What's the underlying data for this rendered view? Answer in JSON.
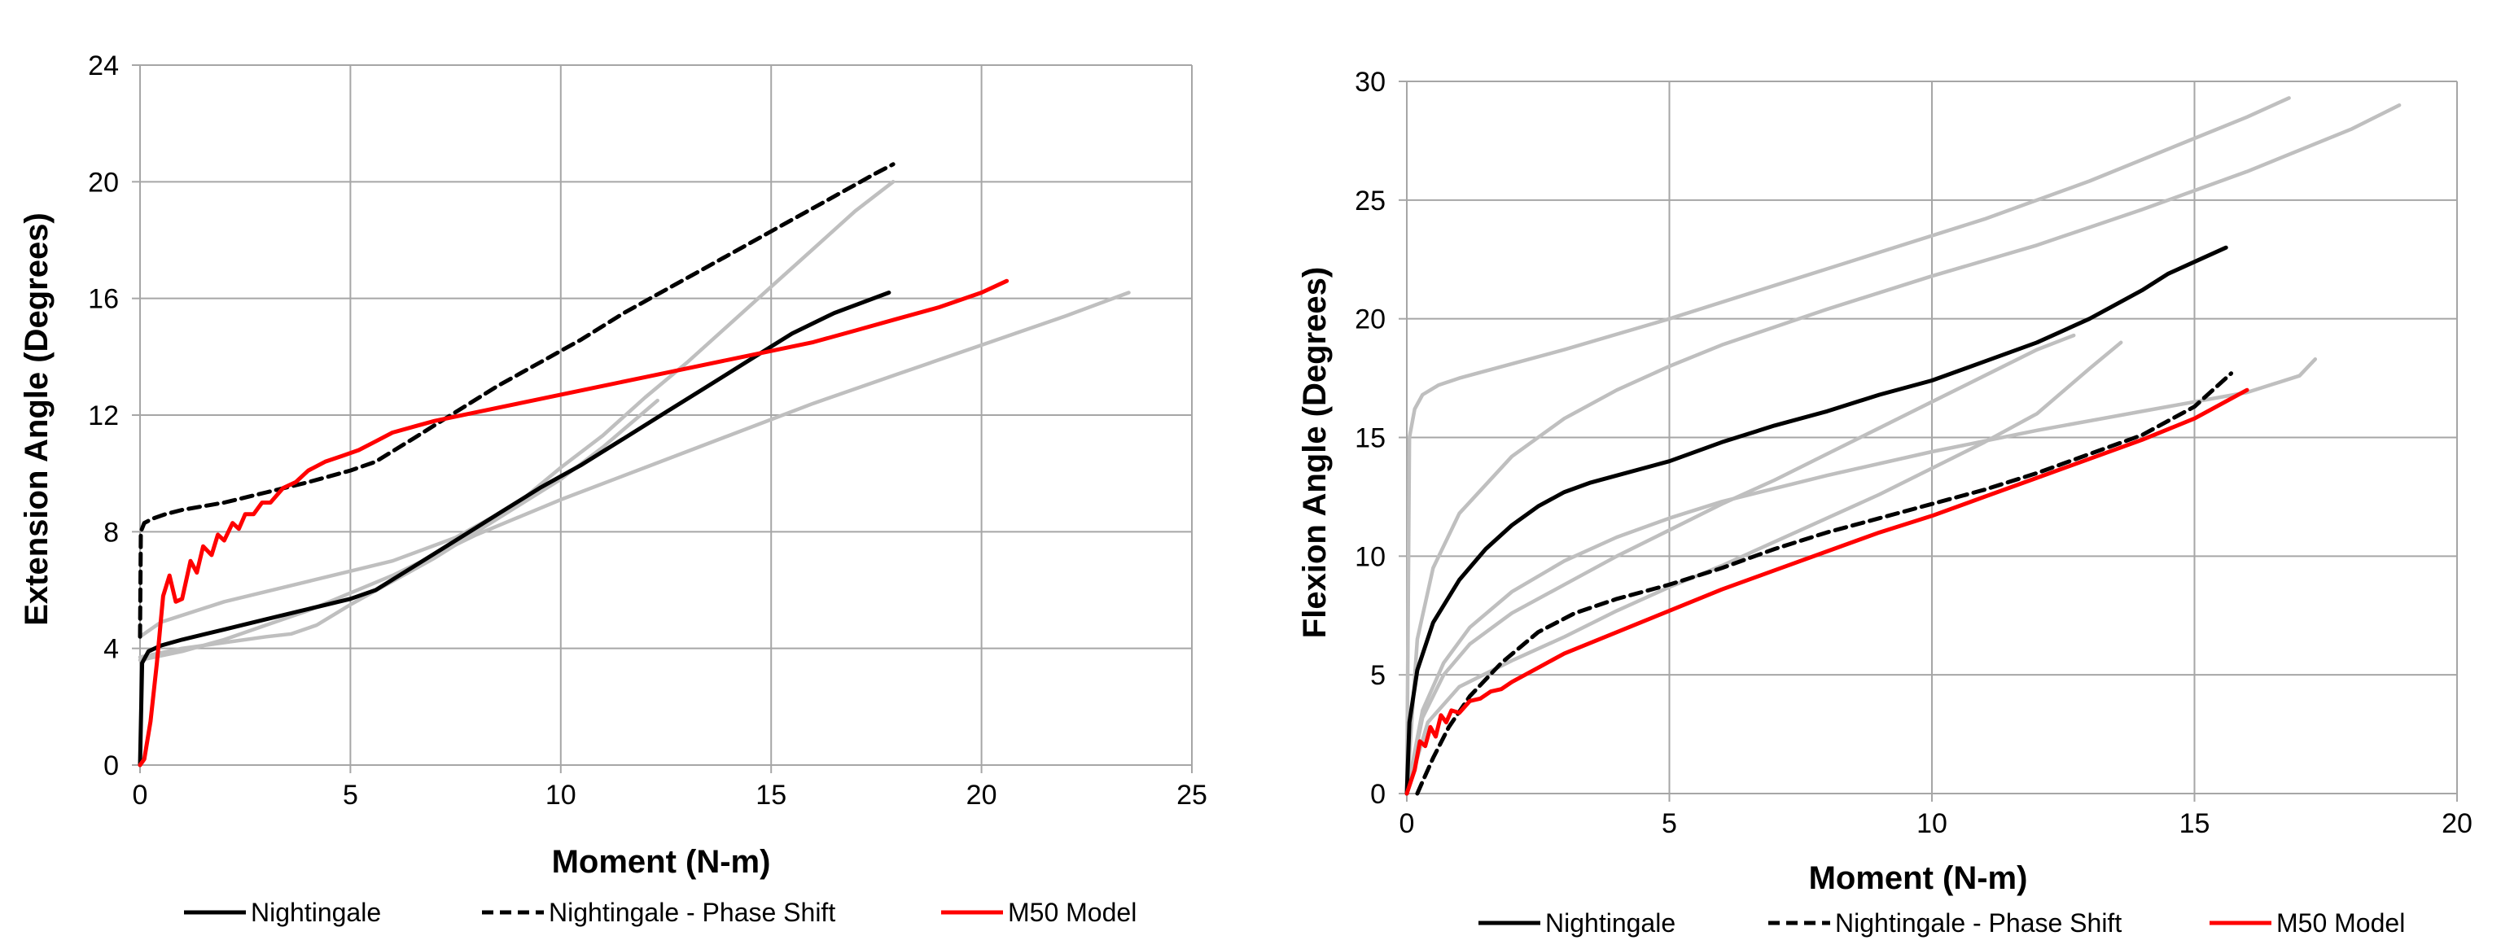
{
  "chart_data": [
    {
      "type": "line",
      "xlabel": "Moment (N-m)",
      "ylabel": "Extension Angle (Degrees)",
      "xlim": [
        0,
        25
      ],
      "ylim": [
        0,
        24
      ],
      "xticks": [
        "0",
        "5",
        "10",
        "15",
        "20",
        "25"
      ],
      "yticks": [
        "0",
        "4",
        "8",
        "12",
        "16",
        "20",
        "24"
      ],
      "grid": true,
      "legend_position": "bottom",
      "colors": {
        "nightingale": "#000000",
        "phase_shift": "#000000",
        "m50": "#ff0000",
        "reference": "#bfbfbf"
      },
      "series": [
        {
          "name": "Nightingale",
          "style": "solid",
          "color": "#000000",
          "x": [
            0,
            0.05,
            0.2,
            0.5,
            1,
            2,
            3,
            4,
            5,
            5.6,
            6.5,
            7.5,
            8.5,
            9.5,
            10.5,
            11.5,
            12.5,
            13.5,
            14.5,
            15.5,
            16.5,
            17.8
          ],
          "y": [
            0,
            3.5,
            3.9,
            4.1,
            4.3,
            4.65,
            5.0,
            5.35,
            5.7,
            6.0,
            6.8,
            7.7,
            8.6,
            9.5,
            10.3,
            11.2,
            12.1,
            13.0,
            13.9,
            14.8,
            15.5,
            16.2
          ]
        },
        {
          "name": "Nightingale - Phase Shift",
          "style": "dashed",
          "color": "#000000",
          "x": [
            0,
            0.02,
            0.1,
            0.3,
            0.6,
            1,
            2,
            3,
            4,
            5,
            5.6,
            6.5,
            7.5,
            8.5,
            9.5,
            10.5,
            11.5,
            12.5,
            13.5,
            14.5,
            15.5,
            16.5,
            17.5,
            17.9
          ],
          "y": [
            4.4,
            8.0,
            8.3,
            8.45,
            8.6,
            8.75,
            9.0,
            9.35,
            9.7,
            10.1,
            10.4,
            11.2,
            12.1,
            13.0,
            13.8,
            14.6,
            15.5,
            16.3,
            17.1,
            17.9,
            18.7,
            19.5,
            20.3,
            20.6
          ]
        },
        {
          "name": "M50 Model",
          "style": "solid",
          "color": "#ff0000",
          "x": [
            0,
            0.1,
            0.25,
            0.4,
            0.55,
            0.7,
            0.85,
            1.0,
            1.2,
            1.35,
            1.5,
            1.7,
            1.85,
            2.0,
            2.2,
            2.35,
            2.5,
            2.7,
            2.9,
            3.1,
            3.4,
            3.7,
            4.0,
            4.4,
            4.8,
            5.2,
            5.6,
            6.0,
            6.5,
            7.0,
            8.0,
            9.0,
            10.0,
            11.0,
            12.0,
            13.0,
            14.0,
            15.0,
            16.0,
            17.0,
            18.0,
            19.0,
            20.0,
            20.6
          ],
          "y": [
            0,
            0.2,
            1.5,
            3.5,
            5.8,
            6.5,
            5.6,
            5.7,
            7.0,
            6.6,
            7.5,
            7.2,
            7.9,
            7.7,
            8.3,
            8.1,
            8.6,
            8.6,
            9.0,
            9.0,
            9.5,
            9.7,
            10.1,
            10.4,
            10.6,
            10.8,
            11.1,
            11.4,
            11.6,
            11.8,
            12.1,
            12.4,
            12.7,
            13.0,
            13.3,
            13.6,
            13.9,
            14.2,
            14.5,
            14.9,
            15.3,
            15.7,
            16.2,
            16.6
          ]
        },
        {
          "style": "solid",
          "color": "#bfbfbf",
          "x": [
            0,
            0.5,
            2,
            4,
            6,
            7.5,
            9,
            10,
            11,
            12,
            13,
            14,
            15,
            16,
            17,
            17.9
          ],
          "y": [
            4.4,
            4.9,
            5.6,
            6.3,
            7.0,
            7.8,
            9.0,
            10.2,
            11.3,
            12.6,
            13.8,
            15.1,
            16.4,
            17.7,
            19.0,
            20.0
          ]
        },
        {
          "style": "solid",
          "color": "#bfbfbf",
          "x": [
            0,
            1,
            2,
            3,
            3.6,
            4.2,
            5,
            6,
            7,
            8,
            9,
            10,
            11,
            12.3
          ],
          "y": [
            3.7,
            4.0,
            4.2,
            4.4,
            4.5,
            4.8,
            5.5,
            6.3,
            7.1,
            8.0,
            8.9,
            9.8,
            10.9,
            12.5
          ]
        },
        {
          "style": "solid",
          "color": "#bfbfbf",
          "x": [
            0,
            1,
            2,
            3,
            4,
            5,
            6,
            7,
            8,
            9,
            10,
            12,
            14,
            16,
            18,
            20,
            22,
            23.5
          ],
          "y": [
            3.6,
            3.9,
            4.3,
            4.8,
            5.3,
            5.9,
            6.5,
            7.2,
            7.9,
            8.5,
            9.1,
            10.2,
            11.3,
            12.4,
            13.4,
            14.4,
            15.4,
            16.2
          ]
        }
      ],
      "legend": [
        "Nightingale",
        "Nightingale - Phase Shift",
        "M50 Model"
      ]
    },
    {
      "type": "line",
      "xlabel": "Moment (N-m)",
      "ylabel": "Flexion Angle (Degrees)",
      "xlim": [
        0,
        20
      ],
      "ylim": [
        0,
        30
      ],
      "xticks": [
        "0",
        "5",
        "10",
        "15",
        "20"
      ],
      "yticks": [
        "0",
        "5",
        "10",
        "15",
        "20",
        "25",
        "30"
      ],
      "grid": true,
      "legend_position": "bottom",
      "series": [
        {
          "name": "Nightingale",
          "style": "solid",
          "color": "#000000",
          "x": [
            0,
            0.05,
            0.2,
            0.5,
            1,
            1.5,
            2,
            2.5,
            3,
            3.5,
            4,
            5,
            6,
            7,
            8,
            9,
            10,
            11,
            12,
            13,
            14,
            14.5,
            15,
            15.6
          ],
          "y": [
            0,
            3.0,
            5.2,
            7.2,
            9.0,
            10.3,
            11.3,
            12.1,
            12.7,
            13.1,
            13.4,
            14.0,
            14.8,
            15.5,
            16.1,
            16.8,
            17.4,
            18.2,
            19.0,
            20.0,
            21.2,
            21.9,
            22.4,
            23.0
          ]
        },
        {
          "name": "Nightingale - Phase Shift",
          "style": "dashed",
          "color": "#000000",
          "x": [
            0.2,
            0.3,
            0.5,
            0.8,
            1.2,
            1.8,
            2.5,
            3.2,
            4,
            5,
            6,
            7,
            8,
            9,
            10,
            11,
            12,
            13,
            14,
            15,
            15.7
          ],
          "y": [
            0,
            0.5,
            1.5,
            2.8,
            4.1,
            5.5,
            6.8,
            7.6,
            8.2,
            8.8,
            9.5,
            10.3,
            11.0,
            11.6,
            12.2,
            12.8,
            13.5,
            14.3,
            15.1,
            16.3,
            17.7
          ]
        },
        {
          "name": "M50 Model",
          "style": "solid",
          "color": "#ff0000",
          "x": [
            0,
            0.15,
            0.25,
            0.35,
            0.45,
            0.55,
            0.65,
            0.75,
            0.85,
            1.0,
            1.2,
            1.4,
            1.6,
            1.8,
            2.0,
            2.5,
            3,
            4,
            5,
            6,
            7,
            8,
            9,
            10,
            11,
            12,
            13,
            14,
            15,
            16
          ],
          "y": [
            0,
            1.0,
            2.2,
            2.0,
            2.8,
            2.4,
            3.3,
            3.0,
            3.5,
            3.4,
            3.9,
            4.0,
            4.3,
            4.4,
            4.7,
            5.3,
            5.9,
            6.8,
            7.7,
            8.6,
            9.4,
            10.2,
            11.0,
            11.7,
            12.5,
            13.3,
            14.1,
            14.9,
            15.8,
            17.0
          ]
        },
        {
          "style": "solid",
          "color": "#bfbfbf",
          "x": [
            0,
            0.05,
            0.15,
            0.3,
            0.6,
            1,
            2,
            3,
            5,
            7,
            9,
            11,
            13,
            15,
            16,
            16.8
          ],
          "y": [
            0,
            15.0,
            16.2,
            16.8,
            17.2,
            17.5,
            18.1,
            18.7,
            20.0,
            21.4,
            22.8,
            24.2,
            25.8,
            27.6,
            28.5,
            29.3
          ]
        },
        {
          "style": "solid",
          "color": "#bfbfbf",
          "x": [
            0,
            0.2,
            0.5,
            1,
            2,
            3,
            4,
            5,
            6,
            8,
            10,
            12,
            14,
            16,
            18,
            18.9
          ],
          "y": [
            0,
            6.5,
            9.5,
            11.8,
            14.2,
            15.8,
            17.0,
            18.0,
            18.9,
            20.4,
            21.8,
            23.1,
            24.6,
            26.2,
            28.0,
            29.0
          ]
        },
        {
          "style": "solid",
          "color": "#bfbfbf",
          "x": [
            0,
            0.3,
            0.7,
            1.2,
            2,
            3,
            4,
            5,
            6,
            8,
            10,
            12,
            14,
            16,
            17,
            17.3
          ],
          "y": [
            0,
            3.5,
            5.5,
            7.0,
            8.5,
            9.8,
            10.8,
            11.6,
            12.3,
            13.4,
            14.4,
            15.3,
            16.1,
            16.9,
            17.6,
            18.3
          ]
        },
        {
          "style": "solid",
          "color": "#bfbfbf",
          "x": [
            0,
            0.3,
            0.7,
            1.2,
            2,
            3,
            4,
            5,
            6,
            7,
            8,
            9,
            10,
            11,
            12,
            12.7
          ],
          "y": [
            0,
            3.2,
            5.0,
            6.3,
            7.6,
            8.8,
            10.0,
            11.1,
            12.2,
            13.2,
            14.3,
            15.4,
            16.5,
            17.6,
            18.7,
            19.3
          ]
        },
        {
          "style": "solid",
          "color": "#bfbfbf",
          "x": [
            0,
            0.4,
            1,
            2,
            3,
            4,
            5,
            6,
            7,
            8,
            9,
            10,
            11,
            12,
            13,
            13.6
          ],
          "y": [
            0,
            3.0,
            4.5,
            5.6,
            6.6,
            7.7,
            8.7,
            9.6,
            10.6,
            11.6,
            12.6,
            13.7,
            14.8,
            16.0,
            17.9,
            19.0
          ]
        }
      ],
      "legend": [
        "Nightingale",
        "Nightingale - Phase Shift",
        "M50 Model"
      ]
    }
  ]
}
